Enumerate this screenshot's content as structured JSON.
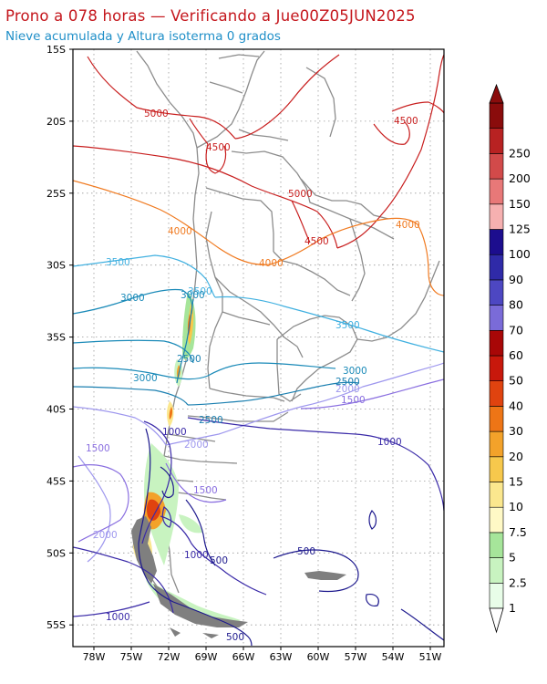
{
  "title": "Prono a 078 horas — Verificando a Jue00Z05JUN2025",
  "subtitle": "Nieve acumulada y Altura isoterma 0 grados",
  "lat_labels": [
    "15S",
    "20S",
    "25S",
    "30S",
    "35S",
    "40S",
    "45S",
    "50S",
    "55S"
  ],
  "lon_labels": [
    "78W",
    "75W",
    "72W",
    "69W",
    "66W",
    "63W",
    "60W",
    "57W",
    "54W",
    "51W"
  ],
  "colorbar": {
    "levels": [
      "1",
      "2.5",
      "5",
      "7.5",
      "10",
      "15",
      "20",
      "30",
      "40",
      "50",
      "60",
      "70",
      "80",
      "90",
      "100",
      "125",
      "150",
      "200",
      "250"
    ],
    "colors": [
      "#e8fde8",
      "#c8f3c0",
      "#a6e59a",
      "#fff9c6",
      "#fbe78e",
      "#f7c84c",
      "#f3a22a",
      "#ee7516",
      "#e0430f",
      "#c8180c",
      "#a80707",
      "#7a6bd8",
      "#4d47c2",
      "#2f2aa8",
      "#1c0d8e",
      "#f6b0b0",
      "#e87878",
      "#d24a4a",
      "#b82222",
      "#8a0c0c"
    ]
  },
  "contour_labels": {
    "iso5000": "5000",
    "iso4500": "4500",
    "iso4000": "4000",
    "iso3500": "3500",
    "iso3000": "3000",
    "iso2500": "2500",
    "iso2000": "2000",
    "iso1500": "1500",
    "iso1000": "1000",
    "iso500": "500"
  },
  "colors": {
    "c5000": "#c81e1e",
    "c4500": "#c81e1e",
    "c4000": "#f07a20",
    "c3500": "#40b0e0",
    "c3000": "#1a8ab8",
    "c2500": "#1a7fb0",
    "c2000": "#9e97ee",
    "c1500": "#8a6fe0",
    "c1000": "#3a2aa8",
    "c500": "#1e1a8e",
    "border": "#8c8c8c"
  }
}
